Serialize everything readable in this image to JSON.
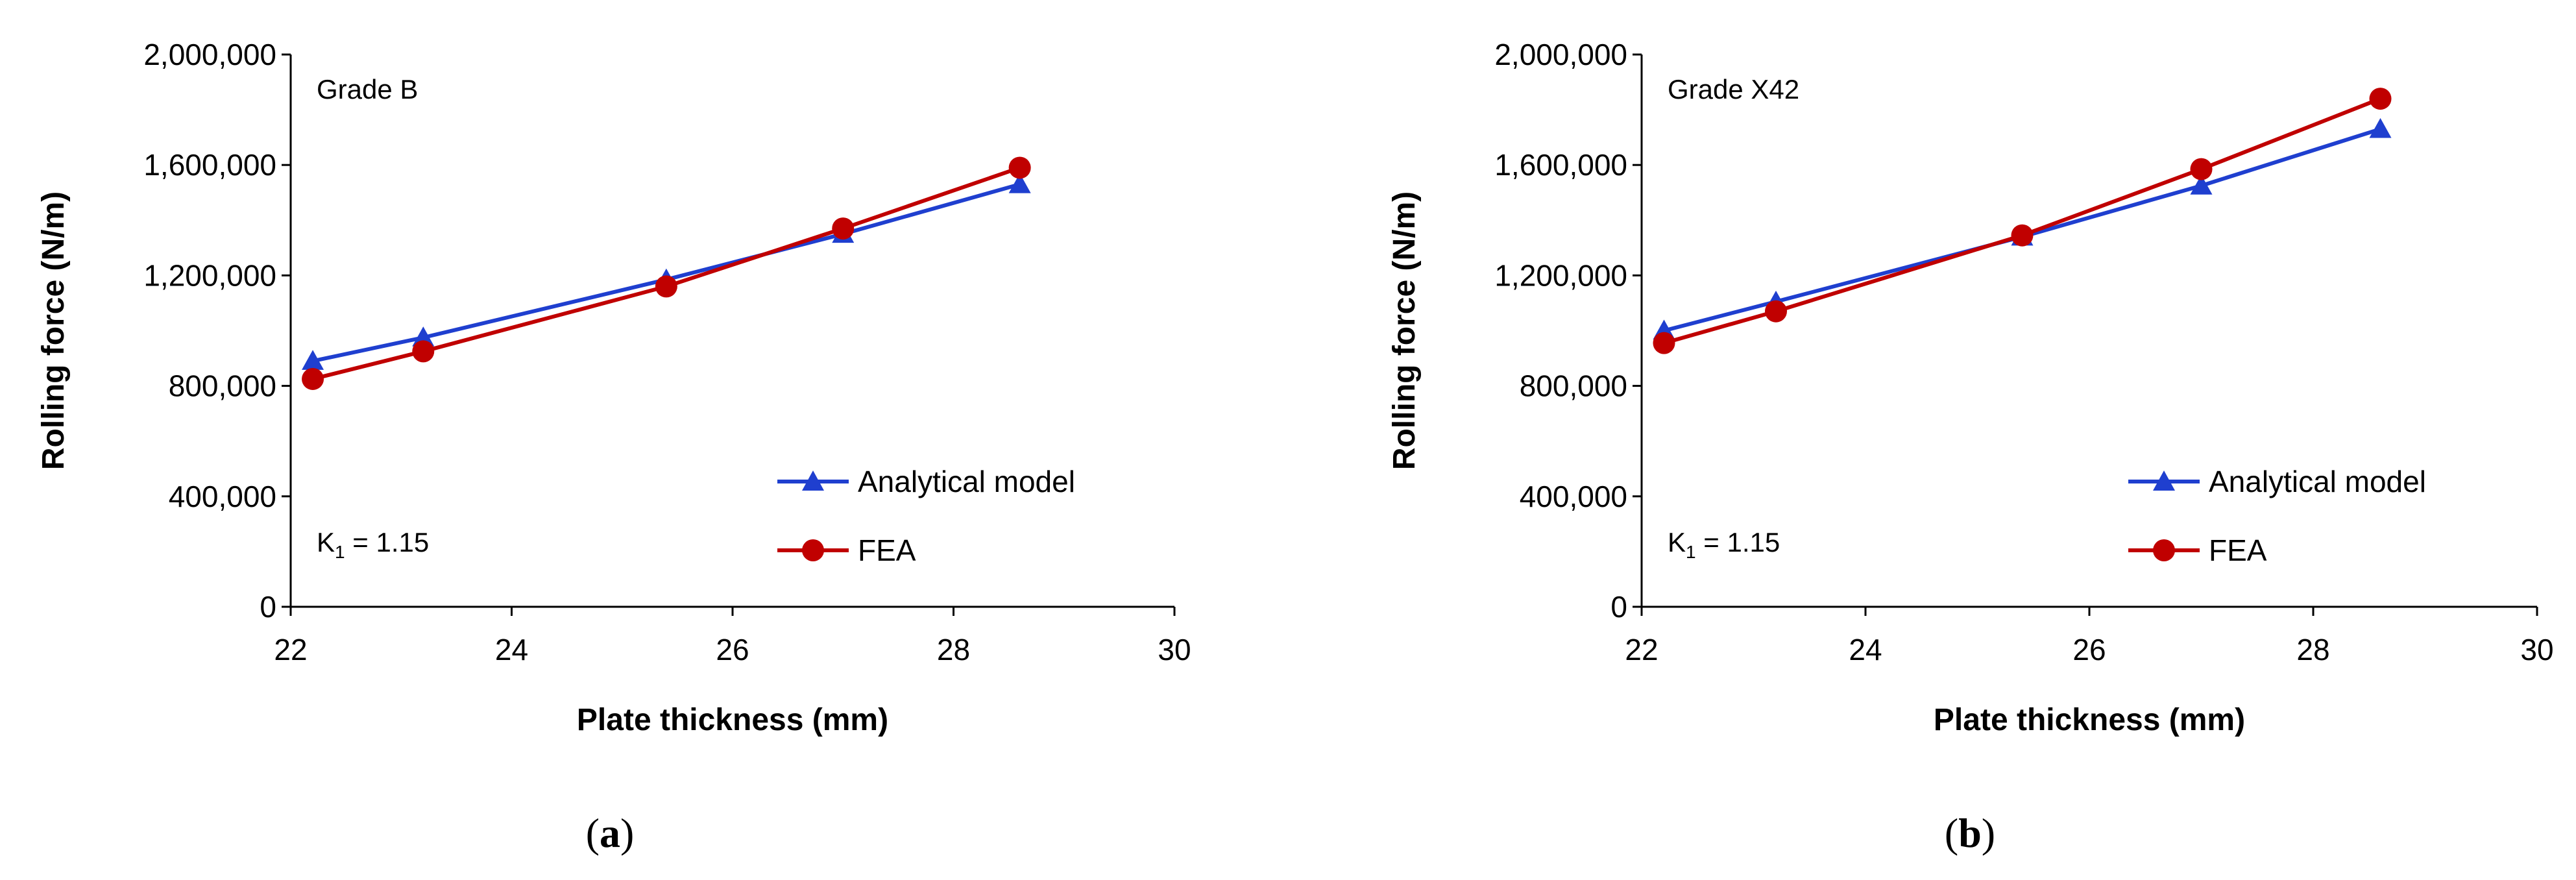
{
  "colors": {
    "analytical": "#1f3fcf",
    "fea": "#c00000",
    "axis": "#000000"
  },
  "chart_data": [
    {
      "type": "line",
      "panel": "a",
      "caption_open": "(",
      "caption_letter": "a",
      "caption_close": ")",
      "annotation": "Grade B",
      "k1_symbol": "K",
      "k1_subscript": "1",
      "k1_value": " = 1.15",
      "xlabel": "Plate thickness (mm)",
      "ylabel": "Rolling force  (N/m)",
      "xlim": [
        22,
        30
      ],
      "ylim": [
        0,
        2000000
      ],
      "xticks": [
        22,
        24,
        26,
        28,
        30
      ],
      "xtick_labels": [
        "22",
        "24",
        "26",
        "28",
        "30"
      ],
      "yticks": [
        0,
        400000,
        800000,
        1200000,
        1600000,
        2000000
      ],
      "ytick_labels": [
        "0",
        "400,000",
        "800,000",
        "1,200,000",
        "1,600,000",
        "2,000,000"
      ],
      "grid": false,
      "legend_position": "bottom-right",
      "series": [
        {
          "name": "Analytical model",
          "marker": "triangle",
          "color_key": "analytical",
          "x": [
            22.2,
            23.2,
            25.4,
            27.0,
            28.6
          ],
          "values": [
            890000,
            975000,
            1185000,
            1350000,
            1530000
          ]
        },
        {
          "name": "FEA",
          "marker": "circle",
          "color_key": "fea",
          "x": [
            22.2,
            23.2,
            25.4,
            27.0,
            28.6
          ],
          "values": [
            825000,
            925000,
            1160000,
            1370000,
            1590000
          ]
        }
      ]
    },
    {
      "type": "line",
      "panel": "b",
      "caption_open": "(",
      "caption_letter": "b",
      "caption_close": ")",
      "annotation": "Grade X42",
      "k1_symbol": "K",
      "k1_subscript": "1",
      "k1_value": " = 1.15",
      "xlabel": "Plate thickness (mm)",
      "ylabel": "Rolling force  (N/m)",
      "xlim": [
        22,
        30
      ],
      "ylim": [
        0,
        2000000
      ],
      "xticks": [
        22,
        24,
        26,
        28,
        30
      ],
      "xtick_labels": [
        "22",
        "24",
        "26",
        "28",
        "30"
      ],
      "yticks": [
        0,
        400000,
        800000,
        1200000,
        1600000,
        2000000
      ],
      "ytick_labels": [
        "0",
        "400,000",
        "800,000",
        "1,200,000",
        "1,600,000",
        "2,000,000"
      ],
      "grid": false,
      "legend_position": "bottom-right",
      "series": [
        {
          "name": "Analytical model",
          "marker": "triangle",
          "color_key": "analytical",
          "x": [
            22.2,
            23.2,
            25.4,
            27.0,
            28.6
          ],
          "values": [
            1000000,
            1105000,
            1340000,
            1525000,
            1730000
          ]
        },
        {
          "name": "FEA",
          "marker": "circle",
          "color_key": "fea",
          "x": [
            22.2,
            23.2,
            25.4,
            27.0,
            28.6
          ],
          "values": [
            955000,
            1070000,
            1345000,
            1585000,
            1840000
          ]
        }
      ]
    }
  ]
}
